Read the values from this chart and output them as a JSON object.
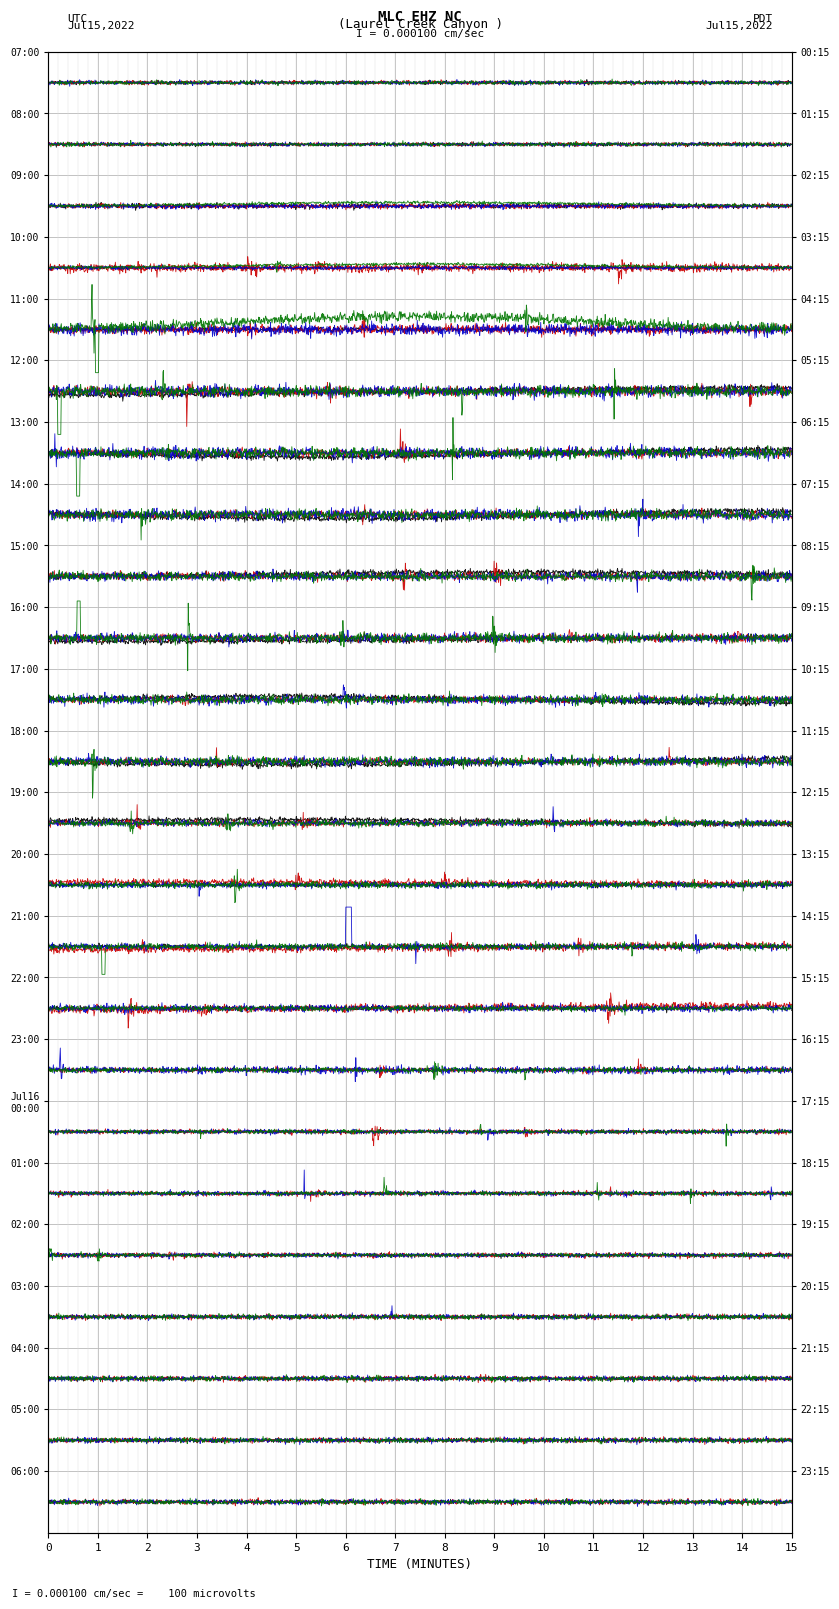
{
  "title_line1": "MLC EHZ NC",
  "title_line2": "(Laurel Creek Canyon )",
  "scale_label": "I = 0.000100 cm/sec",
  "bottom_label": "I = 0.000100 cm/sec =    100 microvolts",
  "left_label_line1": "UTC",
  "left_label_line2": "Jul15,2022",
  "right_label_line1": "PDT",
  "right_label_line2": "Jul15,2022",
  "xlabel": "TIME (MINUTES)",
  "ytick_left": [
    "07:00",
    "08:00",
    "09:00",
    "10:00",
    "11:00",
    "12:00",
    "13:00",
    "14:00",
    "15:00",
    "16:00",
    "17:00",
    "18:00",
    "19:00",
    "20:00",
    "21:00",
    "22:00",
    "23:00",
    "Jul16\n00:00",
    "01:00",
    "02:00",
    "03:00",
    "04:00",
    "05:00",
    "06:00"
  ],
  "ytick_right": [
    "00:15",
    "01:15",
    "02:15",
    "03:15",
    "04:15",
    "05:15",
    "06:15",
    "07:15",
    "08:15",
    "09:15",
    "10:15",
    "11:15",
    "12:15",
    "13:15",
    "14:15",
    "15:15",
    "16:15",
    "17:15",
    "18:15",
    "19:15",
    "20:15",
    "21:15",
    "22:15",
    "23:15"
  ],
  "xmin": 0,
  "xmax": 15,
  "n_rows": 24,
  "minutes_per_row": 15,
  "sps": 100,
  "colors": {
    "black": "#000000",
    "red": "#cc0000",
    "blue": "#0000cc",
    "green": "#007700",
    "grid_major": "#aaaaaa",
    "grid_minor": "#dddddd",
    "bg": "#ffffff"
  },
  "figsize": [
    8.5,
    16.13
  ],
  "dpi": 100,
  "row_amplitude": 0.85,
  "linewidth": 0.6
}
